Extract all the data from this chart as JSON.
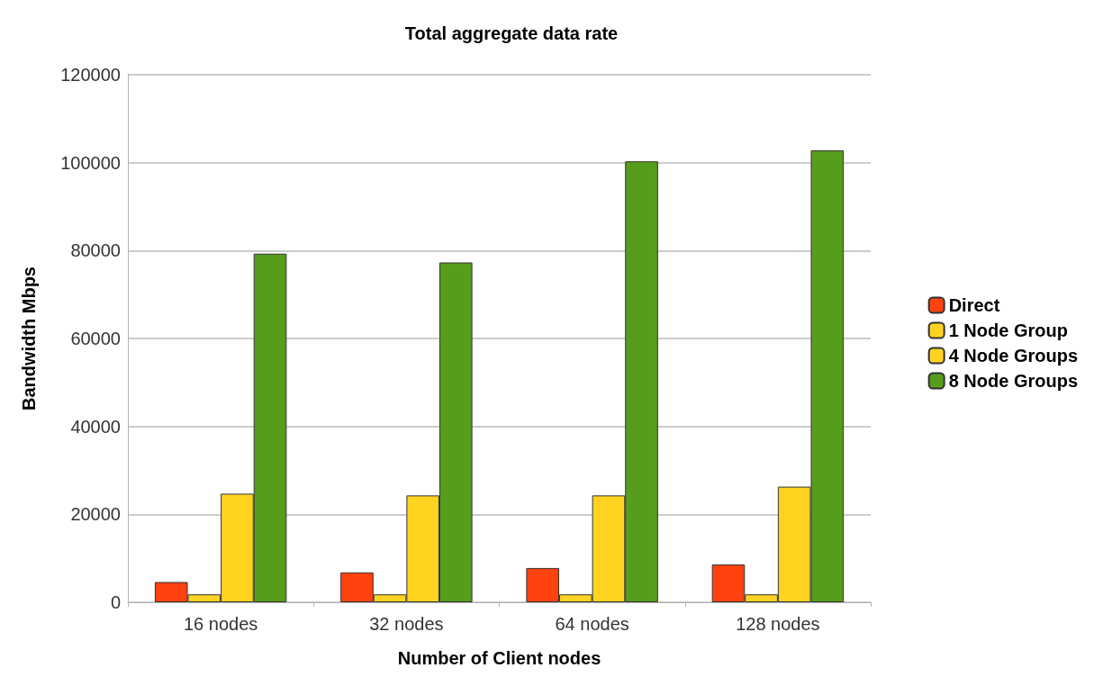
{
  "chart_data": {
    "type": "bar",
    "title": "Total aggregate data rate",
    "xlabel": "Number of Client nodes",
    "ylabel": "Bandwidth Mbps",
    "categories": [
      "16 nodes",
      "32 nodes",
      "64 nodes",
      "128 nodes"
    ],
    "series": [
      {
        "name": "Direct",
        "color": "#ff420e",
        "values": [
          4600,
          6800,
          7800,
          8600
        ]
      },
      {
        "name": "1 Node Group",
        "color": "#ffd320",
        "values": [
          1800,
          1800,
          1800,
          1800
        ]
      },
      {
        "name": "4 Node Groups",
        "color": "#ffd320",
        "values": [
          24700,
          24300,
          24300,
          26300
        ]
      },
      {
        "name": "8 Node Groups",
        "color": "#579d1c",
        "values": [
          79300,
          77300,
          100300,
          102800
        ]
      }
    ],
    "ylim": [
      0,
      120000
    ],
    "yticks": [
      0,
      20000,
      40000,
      60000,
      80000,
      100000,
      120000
    ],
    "grid": "y",
    "legend": "right"
  }
}
